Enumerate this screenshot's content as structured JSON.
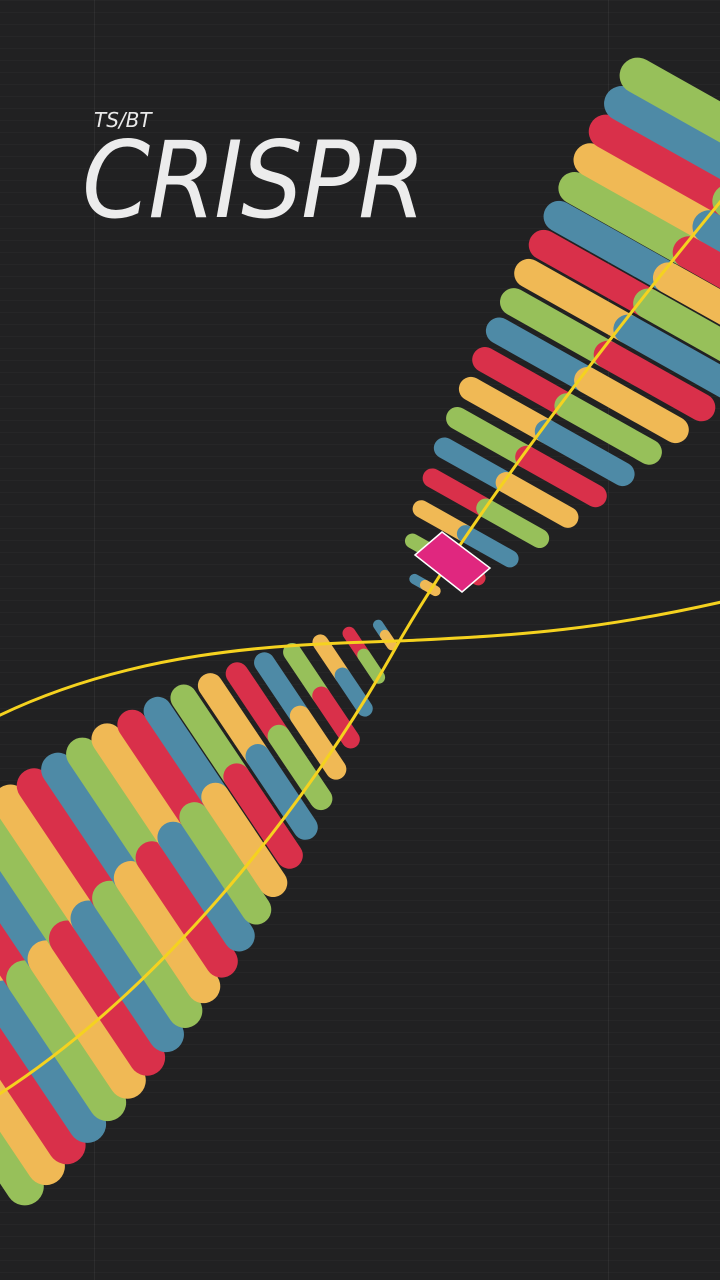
{
  "header": {
    "kicker": "TS/BT",
    "title": "CRISPR"
  },
  "colors": {
    "background": "#212122",
    "red": "#d9304a",
    "blue": "#4e8aa6",
    "green": "#97c05a",
    "orange": "#f0b955",
    "backbone": "#f5d21f",
    "cas_marker": "#e0277f"
  },
  "bases": {
    "order": [
      "red",
      "blue",
      "green",
      "orange"
    ],
    "lower_strand_count": 22,
    "upper_strand_count": 18
  },
  "icons": {
    "marker": "cas-enzyme-marker"
  }
}
